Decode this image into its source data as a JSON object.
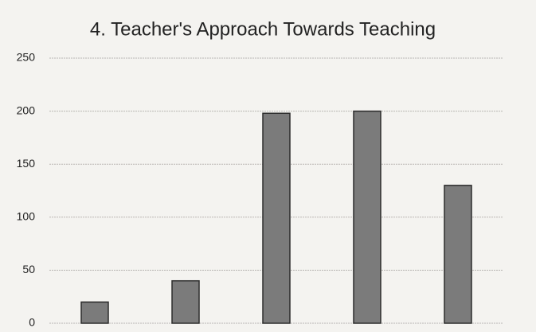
{
  "chart_data": {
    "type": "bar",
    "title": "4. Teacher's Approach Towards Teaching",
    "categories": [
      null,
      null,
      null,
      null,
      null
    ],
    "values": [
      20,
      40,
      198,
      200,
      130
    ],
    "color": "#7b7b7b",
    "ylim": [
      0,
      250
    ],
    "yticks": [
      0,
      50,
      100,
      150,
      200,
      250
    ],
    "grid": true
  }
}
